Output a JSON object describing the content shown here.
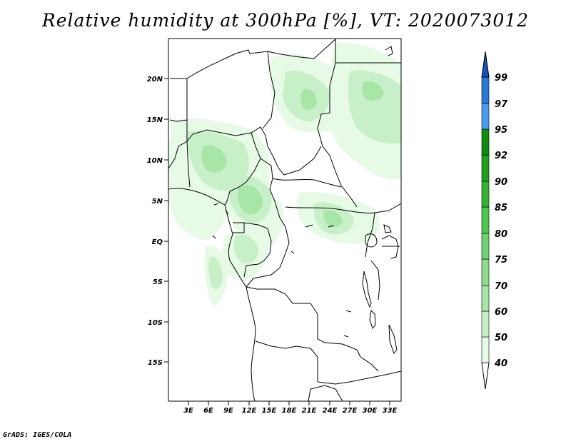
{
  "title": "Relative humidity at 300hPa [%], VT: 2020073012",
  "credit": "GrADS: IGES/COLA",
  "axes": {
    "lat_labels": [
      "20N",
      "15N",
      "10N",
      "5N",
      "EQ",
      "5S",
      "10S",
      "15S"
    ],
    "lon_labels": [
      "3E",
      "6E",
      "9E",
      "12E",
      "15E",
      "18E",
      "21E",
      "24E",
      "27E",
      "30E",
      "33E"
    ]
  },
  "colorbar": {
    "levels": [
      "40",
      "50",
      "60",
      "70",
      "75",
      "80",
      "85",
      "90",
      "92",
      "95",
      "97",
      "99"
    ],
    "colors": [
      "#e6fae6",
      "#c8f0c8",
      "#a8e6a8",
      "#8cdc8c",
      "#6ed26e",
      "#50c850",
      "#32b432",
      "#1ea01e",
      "#0f8c0f",
      "#4a9cf0",
      "#2a78d8",
      "#1a50b8"
    ]
  }
}
